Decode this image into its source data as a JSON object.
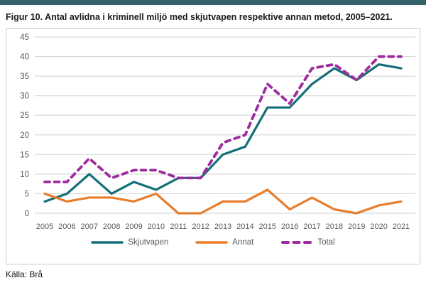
{
  "page": {
    "title": "Figur 10. Antal avlidna i kriminell miljö med skjutvapen respektive annan metod, 2005–2021.",
    "source": "Källa: Brå"
  },
  "colors": {
    "header_bar": "#35616B",
    "skjutvapen": "#156F78",
    "annat": "#E87D2C",
    "total": "#9E2B9E",
    "grid": "#D9D9D9",
    "axis_text": "#595959",
    "panel_border": "#C9C9C9"
  },
  "chart_data": {
    "type": "line",
    "categories": [
      "2005",
      "2006",
      "2007",
      "2008",
      "2009",
      "2010",
      "2011",
      "2012",
      "2013",
      "2014",
      "2015",
      "2016",
      "2017",
      "2018",
      "2019",
      "2020",
      "2021"
    ],
    "series": [
      {
        "name": "Skjutvapen",
        "color_key": "skjutvapen",
        "dash": false,
        "values": [
          3,
          5,
          10,
          5,
          8,
          6,
          9,
          9,
          15,
          17,
          27,
          27,
          33,
          37,
          34,
          38,
          37
        ]
      },
      {
        "name": "Annat",
        "color_key": "annat",
        "dash": false,
        "values": [
          5,
          3,
          4,
          4,
          3,
          5,
          0,
          0,
          3,
          3,
          6,
          1,
          4,
          1,
          0,
          2,
          3
        ]
      },
      {
        "name": "Total",
        "color_key": "total",
        "dash": true,
        "values": [
          8,
          8,
          14,
          9,
          11,
          11,
          9,
          9,
          18,
          20,
          33,
          28,
          37,
          38,
          34,
          40,
          40
        ]
      }
    ],
    "title": "",
    "xlabel": "",
    "ylabel": "",
    "ylim": [
      0,
      45
    ],
    "yticks": [
      0,
      5,
      10,
      15,
      20,
      25,
      30,
      35,
      40,
      45
    ],
    "grid": true,
    "legend_position": "bottom"
  }
}
